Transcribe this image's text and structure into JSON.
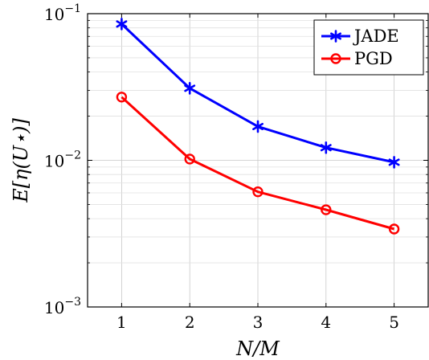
{
  "chart_data": {
    "type": "line",
    "xlabel": "N/M",
    "ylabel": "E[η(U⋆)]",
    "x": [
      1,
      2,
      3,
      4,
      5
    ],
    "x_ticks": [
      "1",
      "2",
      "3",
      "4",
      "5"
    ],
    "xlim": [
      0.5,
      5.5
    ],
    "ylim": [
      0.001,
      0.1
    ],
    "yscale": "log",
    "y_ticks": [
      {
        "base": "10",
        "exp": "−1",
        "value": 0.1
      },
      {
        "base": "10",
        "exp": "−2",
        "value": 0.01
      },
      {
        "base": "10",
        "exp": "−3",
        "value": 0.001
      }
    ],
    "grid": true,
    "legend_position": "top-right",
    "series": [
      {
        "name": "JADE",
        "color": "#0000ff",
        "marker": "asterisk",
        "values": [
          0.085,
          0.031,
          0.017,
          0.0122,
          0.0097
        ]
      },
      {
        "name": "PGD",
        "color": "#ff0000",
        "marker": "circle",
        "values": [
          0.027,
          0.0102,
          0.0061,
          0.0046,
          0.0034
        ]
      }
    ]
  }
}
